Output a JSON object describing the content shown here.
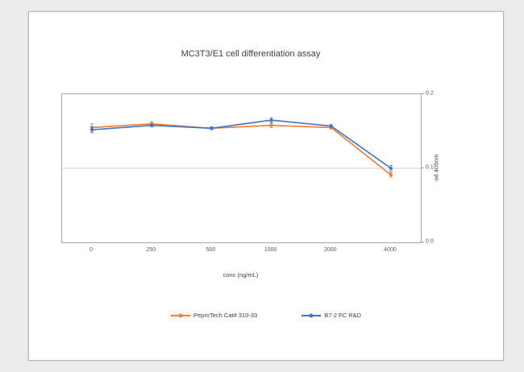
{
  "chart_data": {
    "type": "line",
    "title": "MC3T3/E1 cell differentiation assay",
    "xlabel": "conc (ng/mL)",
    "ylabel": "od 405nm",
    "categories": [
      "0",
      "250",
      "500",
      "1000",
      "2000",
      "4000"
    ],
    "series": [
      {
        "name": "PeproTech Cat# 310-33",
        "color": "#ED7D31",
        "values": [
          0.155,
          0.16,
          0.154,
          0.158,
          0.155,
          0.091
        ],
        "errors": [
          0.005,
          0.003,
          0.002,
          0.003,
          0.002,
          0.003
        ]
      },
      {
        "name": "B7-2 FC R&D",
        "color": "#4472C4",
        "values": [
          0.152,
          0.158,
          0.154,
          0.165,
          0.157,
          0.1
        ],
        "errors": [
          0.004,
          0.002,
          0.002,
          0.003,
          0.002,
          0.004
        ]
      }
    ],
    "ylim": [
      0.0,
      0.2
    ],
    "yticks": [
      "0.0",
      "0.1",
      "0.2"
    ],
    "gridline_value": 0.1,
    "grid": "horizontal",
    "legend_position": "bottom"
  }
}
